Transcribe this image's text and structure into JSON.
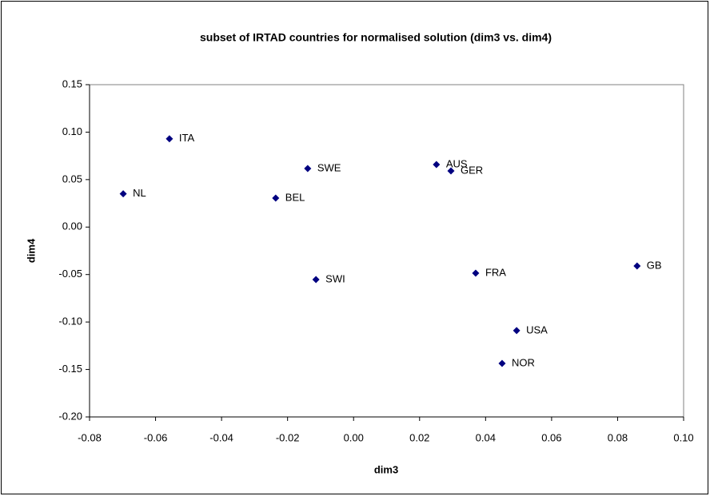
{
  "chart_data": {
    "type": "scatter",
    "title": "subset of IRTAD countries for normalised solution (dim3 vs. dim4)",
    "xlabel": "dim3",
    "ylabel": "dim4",
    "labels": [
      "ITA",
      "NL",
      "SWE",
      "BEL",
      "AUS",
      "GER",
      "SWI",
      "FRA",
      "GB",
      "USA",
      "NOR"
    ],
    "x": [
      -0.0558,
      -0.0698,
      -0.0139,
      -0.0236,
      0.0251,
      0.0295,
      -0.0114,
      0.037,
      0.0859,
      0.0494,
      0.045
    ],
    "values": [
      0.093,
      0.035,
      0.0617,
      0.0305,
      0.0659,
      0.0591,
      -0.0553,
      -0.0486,
      -0.041,
      -0.109,
      -0.1436
    ],
    "color": "#000080",
    "xlim": [
      -0.08,
      0.1
    ],
    "ylim": [
      -0.2,
      0.15
    ],
    "xticks": [
      -0.08,
      -0.06,
      -0.04,
      -0.02,
      {
        "value": 0,
        "label": "0.00"
      },
      0.02,
      0.04,
      0.06,
      0.08,
      {
        "value": 0.1,
        "label": "0.10"
      }
    ],
    "yticks": [
      0.15,
      {
        "value": 0.1,
        "label": "0.10"
      },
      0.05,
      {
        "value": 0,
        "label": "0.00"
      },
      -0.05,
      {
        "value": -0.1,
        "label": "-0.10"
      },
      -0.15,
      {
        "value": -0.2,
        "label": "-0.20"
      }
    ]
  }
}
